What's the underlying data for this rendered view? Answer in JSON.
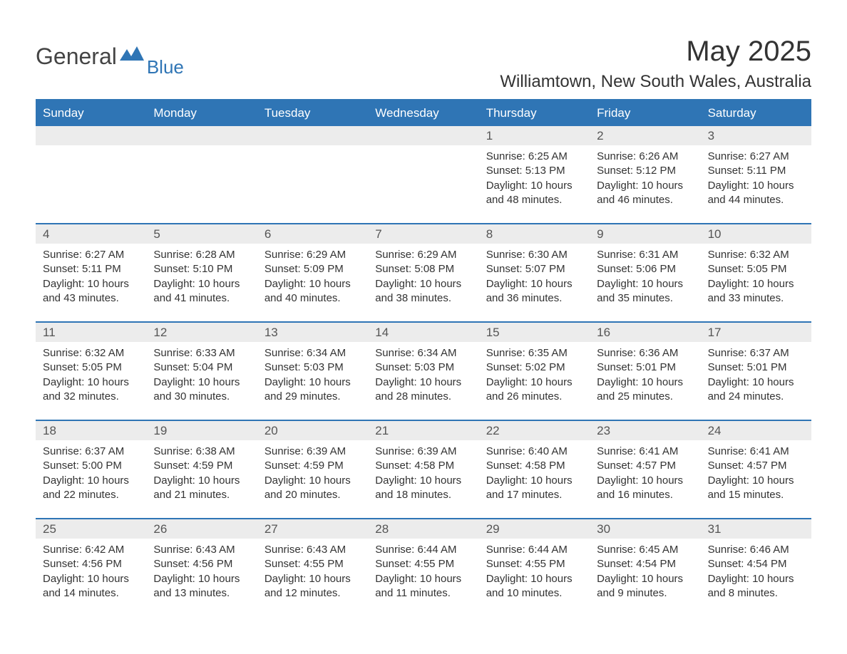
{
  "logo": {
    "word1": "General",
    "word2": "Blue"
  },
  "title": "May 2025",
  "location": "Williamtown, New South Wales, Australia",
  "colors": {
    "brand": "#2f75b5",
    "header_text": "#ffffff",
    "date_bg": "#ececec",
    "body_text": "#333333",
    "date_text": "#555555",
    "page_bg": "#ffffff"
  },
  "fonts": {
    "title_pt": 40,
    "location_pt": 24,
    "dayheader_pt": 17,
    "date_pt": 17,
    "cell_pt": 15
  },
  "day_headers": [
    "Sunday",
    "Monday",
    "Tuesday",
    "Wednesday",
    "Thursday",
    "Friday",
    "Saturday"
  ],
  "weeks": [
    [
      null,
      null,
      null,
      null,
      {
        "date": "1",
        "sunrise": "6:25 AM",
        "sunset": "5:13 PM",
        "daylight_h": 10,
        "daylight_m": 48
      },
      {
        "date": "2",
        "sunrise": "6:26 AM",
        "sunset": "5:12 PM",
        "daylight_h": 10,
        "daylight_m": 46
      },
      {
        "date": "3",
        "sunrise": "6:27 AM",
        "sunset": "5:11 PM",
        "daylight_h": 10,
        "daylight_m": 44
      }
    ],
    [
      {
        "date": "4",
        "sunrise": "6:27 AM",
        "sunset": "5:11 PM",
        "daylight_h": 10,
        "daylight_m": 43
      },
      {
        "date": "5",
        "sunrise": "6:28 AM",
        "sunset": "5:10 PM",
        "daylight_h": 10,
        "daylight_m": 41
      },
      {
        "date": "6",
        "sunrise": "6:29 AM",
        "sunset": "5:09 PM",
        "daylight_h": 10,
        "daylight_m": 40
      },
      {
        "date": "7",
        "sunrise": "6:29 AM",
        "sunset": "5:08 PM",
        "daylight_h": 10,
        "daylight_m": 38
      },
      {
        "date": "8",
        "sunrise": "6:30 AM",
        "sunset": "5:07 PM",
        "daylight_h": 10,
        "daylight_m": 36
      },
      {
        "date": "9",
        "sunrise": "6:31 AM",
        "sunset": "5:06 PM",
        "daylight_h": 10,
        "daylight_m": 35
      },
      {
        "date": "10",
        "sunrise": "6:32 AM",
        "sunset": "5:05 PM",
        "daylight_h": 10,
        "daylight_m": 33
      }
    ],
    [
      {
        "date": "11",
        "sunrise": "6:32 AM",
        "sunset": "5:05 PM",
        "daylight_h": 10,
        "daylight_m": 32
      },
      {
        "date": "12",
        "sunrise": "6:33 AM",
        "sunset": "5:04 PM",
        "daylight_h": 10,
        "daylight_m": 30
      },
      {
        "date": "13",
        "sunrise": "6:34 AM",
        "sunset": "5:03 PM",
        "daylight_h": 10,
        "daylight_m": 29
      },
      {
        "date": "14",
        "sunrise": "6:34 AM",
        "sunset": "5:03 PM",
        "daylight_h": 10,
        "daylight_m": 28
      },
      {
        "date": "15",
        "sunrise": "6:35 AM",
        "sunset": "5:02 PM",
        "daylight_h": 10,
        "daylight_m": 26
      },
      {
        "date": "16",
        "sunrise": "6:36 AM",
        "sunset": "5:01 PM",
        "daylight_h": 10,
        "daylight_m": 25
      },
      {
        "date": "17",
        "sunrise": "6:37 AM",
        "sunset": "5:01 PM",
        "daylight_h": 10,
        "daylight_m": 24
      }
    ],
    [
      {
        "date": "18",
        "sunrise": "6:37 AM",
        "sunset": "5:00 PM",
        "daylight_h": 10,
        "daylight_m": 22
      },
      {
        "date": "19",
        "sunrise": "6:38 AM",
        "sunset": "4:59 PM",
        "daylight_h": 10,
        "daylight_m": 21
      },
      {
        "date": "20",
        "sunrise": "6:39 AM",
        "sunset": "4:59 PM",
        "daylight_h": 10,
        "daylight_m": 20
      },
      {
        "date": "21",
        "sunrise": "6:39 AM",
        "sunset": "4:58 PM",
        "daylight_h": 10,
        "daylight_m": 18
      },
      {
        "date": "22",
        "sunrise": "6:40 AM",
        "sunset": "4:58 PM",
        "daylight_h": 10,
        "daylight_m": 17
      },
      {
        "date": "23",
        "sunrise": "6:41 AM",
        "sunset": "4:57 PM",
        "daylight_h": 10,
        "daylight_m": 16
      },
      {
        "date": "24",
        "sunrise": "6:41 AM",
        "sunset": "4:57 PM",
        "daylight_h": 10,
        "daylight_m": 15
      }
    ],
    [
      {
        "date": "25",
        "sunrise": "6:42 AM",
        "sunset": "4:56 PM",
        "daylight_h": 10,
        "daylight_m": 14
      },
      {
        "date": "26",
        "sunrise": "6:43 AM",
        "sunset": "4:56 PM",
        "daylight_h": 10,
        "daylight_m": 13
      },
      {
        "date": "27",
        "sunrise": "6:43 AM",
        "sunset": "4:55 PM",
        "daylight_h": 10,
        "daylight_m": 12
      },
      {
        "date": "28",
        "sunrise": "6:44 AM",
        "sunset": "4:55 PM",
        "daylight_h": 10,
        "daylight_m": 11
      },
      {
        "date": "29",
        "sunrise": "6:44 AM",
        "sunset": "4:55 PM",
        "daylight_h": 10,
        "daylight_m": 10
      },
      {
        "date": "30",
        "sunrise": "6:45 AM",
        "sunset": "4:54 PM",
        "daylight_h": 10,
        "daylight_m": 9
      },
      {
        "date": "31",
        "sunrise": "6:46 AM",
        "sunset": "4:54 PM",
        "daylight_h": 10,
        "daylight_m": 8
      }
    ]
  ],
  "labels": {
    "sunrise": "Sunrise:",
    "sunset": "Sunset:",
    "daylight_prefix": "Daylight:",
    "hours_word": "hours",
    "and_word": "and",
    "minutes_word": "minutes."
  }
}
